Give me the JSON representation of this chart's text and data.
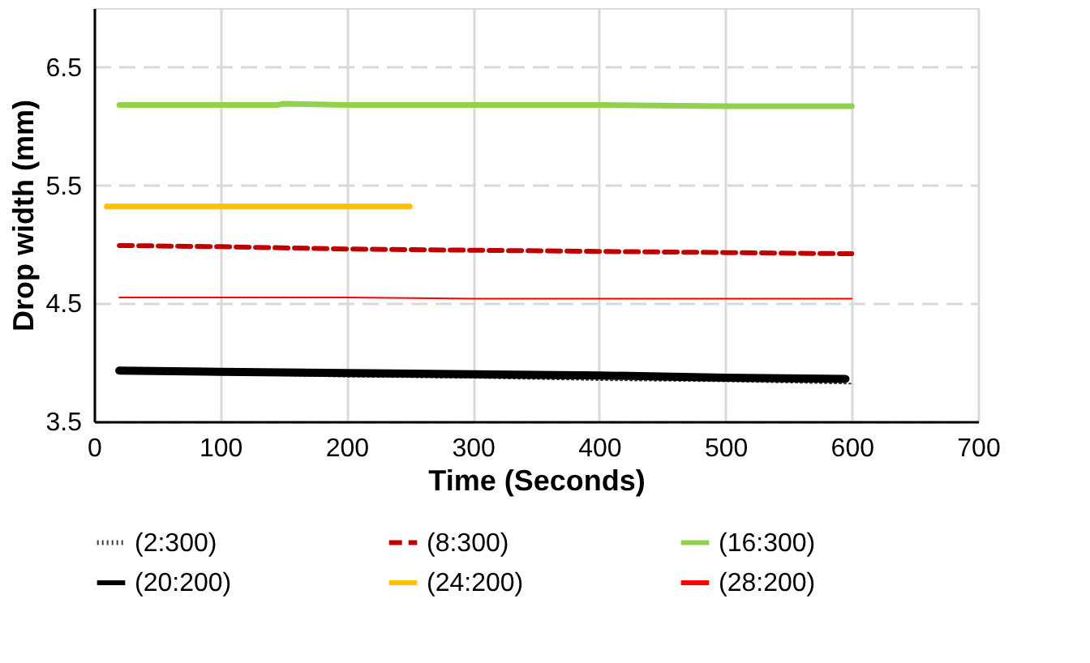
{
  "chart_data": {
    "type": "line",
    "xlabel": "Time (Seconds)",
    "ylabel": "Drop width (mm)",
    "xlim": [
      0,
      700
    ],
    "xticks": [
      0,
      100,
      200,
      300,
      400,
      500,
      600,
      700
    ],
    "ylim": [
      3.5,
      7.0
    ],
    "yticks": [
      3.5,
      4.5,
      5.5,
      6.5
    ],
    "grid": true,
    "legend": "bottom",
    "marker": "none",
    "series": [
      {
        "name": "(2:300)",
        "color": "#404040",
        "line_style": "dotted",
        "x": [
          20,
          100,
          200,
          300,
          400,
          500,
          600
        ],
        "values": [
          3.91,
          3.9,
          3.88,
          3.87,
          3.85,
          3.84,
          3.82
        ]
      },
      {
        "name": "(8:300)",
        "color": "#c00000",
        "line_style": "dashed",
        "x": [
          20,
          100,
          200,
          300,
          400,
          500,
          600
        ],
        "values": [
          4.99,
          4.98,
          4.96,
          4.95,
          4.94,
          4.93,
          4.92
        ]
      },
      {
        "name": "(16:300)",
        "color": "#92d050",
        "line_style": "solid",
        "x": [
          20,
          100,
          145,
          150,
          200,
          300,
          400,
          500,
          600
        ],
        "values": [
          6.18,
          6.18,
          6.18,
          6.19,
          6.18,
          6.18,
          6.18,
          6.17,
          6.17
        ]
      },
      {
        "name": "(20:200)",
        "color": "#000000",
        "line_style": "solid",
        "x": [
          20,
          100,
          200,
          300,
          400,
          500,
          595
        ],
        "values": [
          3.93,
          3.92,
          3.91,
          3.9,
          3.89,
          3.87,
          3.86
        ]
      },
      {
        "name": "(24:200)",
        "color": "#ffc000",
        "line_style": "solid",
        "x": [
          10,
          100,
          200,
          250
        ],
        "values": [
          5.32,
          5.32,
          5.32,
          5.32
        ]
      },
      {
        "name": "(28:200)",
        "color": "#ff0000",
        "line_style": "solid",
        "x": [
          20,
          100,
          200,
          300,
          400,
          500,
          600
        ],
        "values": [
          4.55,
          4.55,
          4.55,
          4.54,
          4.54,
          4.54,
          4.54
        ]
      }
    ]
  }
}
